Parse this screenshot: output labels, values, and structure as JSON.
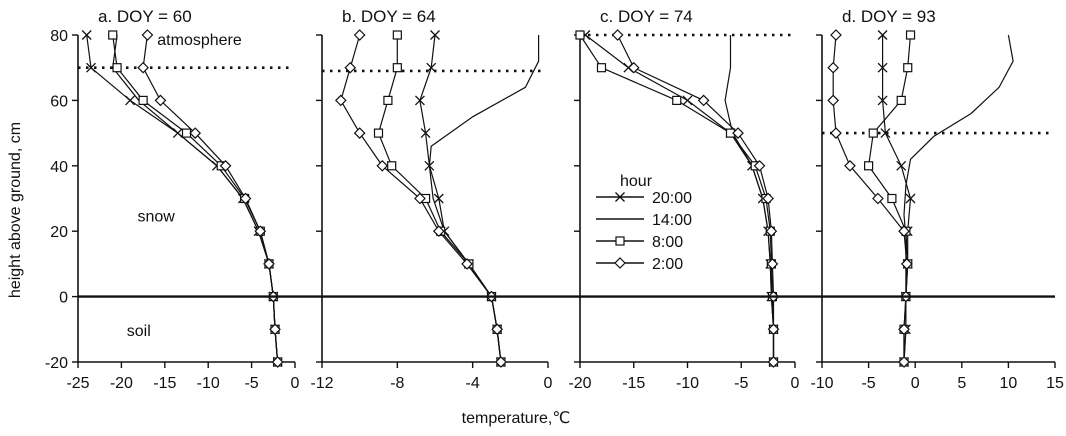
{
  "ylabel": "height above ground, cm",
  "xlabel": "temperature,℃",
  "legend": {
    "title": "hour",
    "entries": [
      {
        "label": "20:00",
        "marker": "x"
      },
      {
        "label": "14:00",
        "marker": "none"
      },
      {
        "label": "8:00",
        "marker": "square"
      },
      {
        "label": "2:00",
        "marker": "diamond"
      }
    ]
  },
  "colors": {
    "line": "#111111",
    "background": "#ffffff"
  },
  "chart_data": [
    {
      "type": "line",
      "title": "a. DOY = 60",
      "xlim": [
        -25,
        0
      ],
      "xticks": [
        -25,
        -20,
        -15,
        -10,
        -5,
        0
      ],
      "ylim": [
        -20,
        80
      ],
      "yticks": [
        -20,
        0,
        20,
        40,
        60,
        80
      ],
      "snow_surface": 70,
      "labels": [
        {
          "text": "atmosphere",
          "x": -11,
          "y": 77
        },
        {
          "text": "snow",
          "x": -16,
          "y": 23
        },
        {
          "text": "soil",
          "x": -18,
          "y": -12
        }
      ],
      "series": [
        {
          "name": "20:00",
          "marker": "x",
          "points": [
            [
              -24,
              80
            ],
            [
              -23.5,
              70
            ],
            [
              -19,
              60
            ],
            [
              -13.5,
              50
            ],
            [
              -9,
              40
            ],
            [
              -6,
              30
            ],
            [
              -4.2,
              20
            ],
            [
              -3,
              10
            ],
            [
              -2.5,
              0
            ],
            [
              -2.3,
              -10
            ],
            [
              -2,
              -20
            ]
          ]
        },
        {
          "name": "14:00",
          "marker": "none",
          "points": [
            [
              -20.5,
              80
            ],
            [
              -21,
              70
            ],
            [
              -18,
              60
            ],
            [
              -13.5,
              50
            ],
            [
              -9,
              40
            ],
            [
              -6,
              30
            ],
            [
              -4.2,
              20
            ],
            [
              -3,
              10
            ],
            [
              -2.5,
              0
            ],
            [
              -2.3,
              -10
            ],
            [
              -2,
              -20
            ]
          ]
        },
        {
          "name": "8:00",
          "marker": "square",
          "points": [
            [
              -21,
              80
            ],
            [
              -20.5,
              70
            ],
            [
              -17.5,
              60
            ],
            [
              -12.5,
              50
            ],
            [
              -8.5,
              40
            ],
            [
              -5.8,
              30
            ],
            [
              -4,
              20
            ],
            [
              -3,
              10
            ],
            [
              -2.5,
              0
            ],
            [
              -2.3,
              -10
            ],
            [
              -2,
              -20
            ]
          ]
        },
        {
          "name": "2:00",
          "marker": "diamond",
          "points": [
            [
              -17,
              80
            ],
            [
              -17.5,
              70
            ],
            [
              -15.5,
              60
            ],
            [
              -11.5,
              50
            ],
            [
              -8,
              40
            ],
            [
              -5.7,
              30
            ],
            [
              -4,
              20
            ],
            [
              -3,
              10
            ],
            [
              -2.5,
              0
            ],
            [
              -2.3,
              -10
            ],
            [
              -2,
              -20
            ]
          ]
        }
      ]
    },
    {
      "type": "line",
      "title": "b. DOY = 64",
      "xlim": [
        -12,
        0
      ],
      "xticks": [
        -12,
        -8,
        -4,
        0
      ],
      "ylim": [
        -20,
        80
      ],
      "yticks": [
        -20,
        0,
        20,
        40,
        60,
        80
      ],
      "snow_surface": 69,
      "labels": [],
      "series": [
        {
          "name": "20:00",
          "marker": "x",
          "points": [
            [
              -6,
              80
            ],
            [
              -6.2,
              70
            ],
            [
              -6.8,
              60
            ],
            [
              -6.5,
              50
            ],
            [
              -6.3,
              40
            ],
            [
              -5.8,
              30
            ],
            [
              -5.5,
              20
            ],
            [
              -4.2,
              10
            ],
            [
              -3,
              0
            ],
            [
              -2.7,
              -10
            ],
            [
              -2.5,
              -20
            ]
          ]
        },
        {
          "name": "14:00",
          "marker": "none",
          "points": [
            [
              -0.5,
              80
            ],
            [
              -0.5,
              72
            ],
            [
              -1.2,
              64
            ],
            [
              -4,
              55
            ],
            [
              -6.2,
              46
            ],
            [
              -6.3,
              40
            ],
            [
              -6.1,
              30
            ],
            [
              -5.5,
              20
            ],
            [
              -4.2,
              10
            ],
            [
              -3,
              0
            ],
            [
              -2.7,
              -10
            ],
            [
              -2.5,
              -20
            ]
          ]
        },
        {
          "name": "8:00",
          "marker": "square",
          "points": [
            [
              -8,
              80
            ],
            [
              -8,
              70
            ],
            [
              -8.5,
              60
            ],
            [
              -9,
              50
            ],
            [
              -8.3,
              40
            ],
            [
              -6.5,
              30
            ],
            [
              -5.7,
              20
            ],
            [
              -4.2,
              10
            ],
            [
              -3,
              0
            ],
            [
              -2.7,
              -10
            ],
            [
              -2.5,
              -20
            ]
          ]
        },
        {
          "name": "2:00",
          "marker": "diamond",
          "points": [
            [
              -10,
              80
            ],
            [
              -10.5,
              70
            ],
            [
              -11,
              60
            ],
            [
              -10,
              50
            ],
            [
              -8.8,
              40
            ],
            [
              -6.8,
              30
            ],
            [
              -5.8,
              20
            ],
            [
              -4.3,
              10
            ],
            [
              -3,
              0
            ],
            [
              -2.7,
              -10
            ],
            [
              -2.5,
              -20
            ]
          ]
        }
      ]
    },
    {
      "type": "line",
      "title": "c. DOY = 74",
      "xlim": [
        -20,
        0
      ],
      "xticks": [
        -20,
        -15,
        -10,
        -5,
        0
      ],
      "ylim": [
        -20,
        80
      ],
      "yticks": [
        -20,
        0,
        20,
        40,
        60,
        80
      ],
      "snow_surface": 80,
      "labels": [],
      "series": [
        {
          "name": "20:00",
          "marker": "x",
          "points": [
            [
              -19.5,
              80
            ],
            [
              -15.5,
              70
            ],
            [
              -10,
              60
            ],
            [
              -6,
              50
            ],
            [
              -4,
              40
            ],
            [
              -3,
              30
            ],
            [
              -2.5,
              20
            ],
            [
              -2.3,
              10
            ],
            [
              -2.2,
              0
            ],
            [
              -2,
              -10
            ],
            [
              -2,
              -20
            ]
          ]
        },
        {
          "name": "14:00",
          "marker": "none",
          "points": [
            [
              -6,
              80
            ],
            [
              -6,
              70
            ],
            [
              -6.5,
              60
            ],
            [
              -5.8,
              50
            ],
            [
              -4,
              40
            ],
            [
              -3,
              30
            ],
            [
              -2.5,
              20
            ],
            [
              -2.3,
              10
            ],
            [
              -2.2,
              0
            ],
            [
              -2,
              -10
            ],
            [
              -2,
              -20
            ]
          ]
        },
        {
          "name": "8:00",
          "marker": "square",
          "points": [
            [
              -20,
              80
            ],
            [
              -18,
              70
            ],
            [
              -11,
              60
            ],
            [
              -6,
              50
            ],
            [
              -3.7,
              40
            ],
            [
              -2.7,
              30
            ],
            [
              -2.3,
              20
            ],
            [
              -2.2,
              10
            ],
            [
              -2.1,
              0
            ],
            [
              -2,
              -10
            ],
            [
              -2,
              -20
            ]
          ]
        },
        {
          "name": "2:00",
          "marker": "diamond",
          "points": [
            [
              -16.5,
              80
            ],
            [
              -15,
              70
            ],
            [
              -8.5,
              60
            ],
            [
              -5.3,
              50
            ],
            [
              -3.3,
              40
            ],
            [
              -2.5,
              30
            ],
            [
              -2.2,
              20
            ],
            [
              -2.1,
              10
            ],
            [
              -2,
              0
            ],
            [
              -2,
              -10
            ],
            [
              -2,
              -20
            ]
          ]
        }
      ]
    },
    {
      "type": "line",
      "title": "d. DOY = 93",
      "xlim": [
        -10,
        15
      ],
      "xticks": [
        -10,
        -5,
        0,
        5,
        10,
        15
      ],
      "ylim": [
        -20,
        80
      ],
      "yticks": [
        -20,
        0,
        20,
        40,
        60,
        80
      ],
      "snow_surface": 50,
      "labels": [],
      "series": [
        {
          "name": "20:00",
          "marker": "x",
          "points": [
            [
              -3.5,
              80
            ],
            [
              -3.5,
              70
            ],
            [
              -3.5,
              60
            ],
            [
              -3.2,
              50
            ],
            [
              -1.5,
              40
            ],
            [
              -0.5,
              30
            ],
            [
              -0.8,
              20
            ],
            [
              -0.8,
              10
            ],
            [
              -1,
              0
            ],
            [
              -1,
              -10
            ],
            [
              -1.2,
              -20
            ]
          ]
        },
        {
          "name": "14:00",
          "marker": "none",
          "points": [
            [
              10,
              80
            ],
            [
              10.5,
              72
            ],
            [
              9,
              64
            ],
            [
              6,
              56
            ],
            [
              2,
              49
            ],
            [
              -0.5,
              42
            ],
            [
              -1,
              34
            ],
            [
              -1.2,
              25
            ],
            [
              -1,
              18
            ],
            [
              -1,
              10
            ],
            [
              -1,
              0
            ],
            [
              -1,
              -10
            ],
            [
              -1.2,
              -20
            ]
          ]
        },
        {
          "name": "8:00",
          "marker": "square",
          "points": [
            [
              -0.5,
              80
            ],
            [
              -0.8,
              70
            ],
            [
              -1.5,
              60
            ],
            [
              -4.5,
              50
            ],
            [
              -5,
              40
            ],
            [
              -2.5,
              30
            ],
            [
              -1,
              20
            ],
            [
              -0.8,
              10
            ],
            [
              -1,
              0
            ],
            [
              -1.2,
              -10
            ],
            [
              -1.2,
              -20
            ]
          ]
        },
        {
          "name": "2:00",
          "marker": "diamond",
          "points": [
            [
              -8.5,
              80
            ],
            [
              -8.8,
              70
            ],
            [
              -8.8,
              60
            ],
            [
              -8.5,
              50
            ],
            [
              -7,
              40
            ],
            [
              -4,
              30
            ],
            [
              -1.2,
              20
            ],
            [
              -0.9,
              10
            ],
            [
              -1,
              0
            ],
            [
              -1.2,
              -10
            ],
            [
              -1.2,
              -20
            ]
          ]
        }
      ]
    }
  ]
}
